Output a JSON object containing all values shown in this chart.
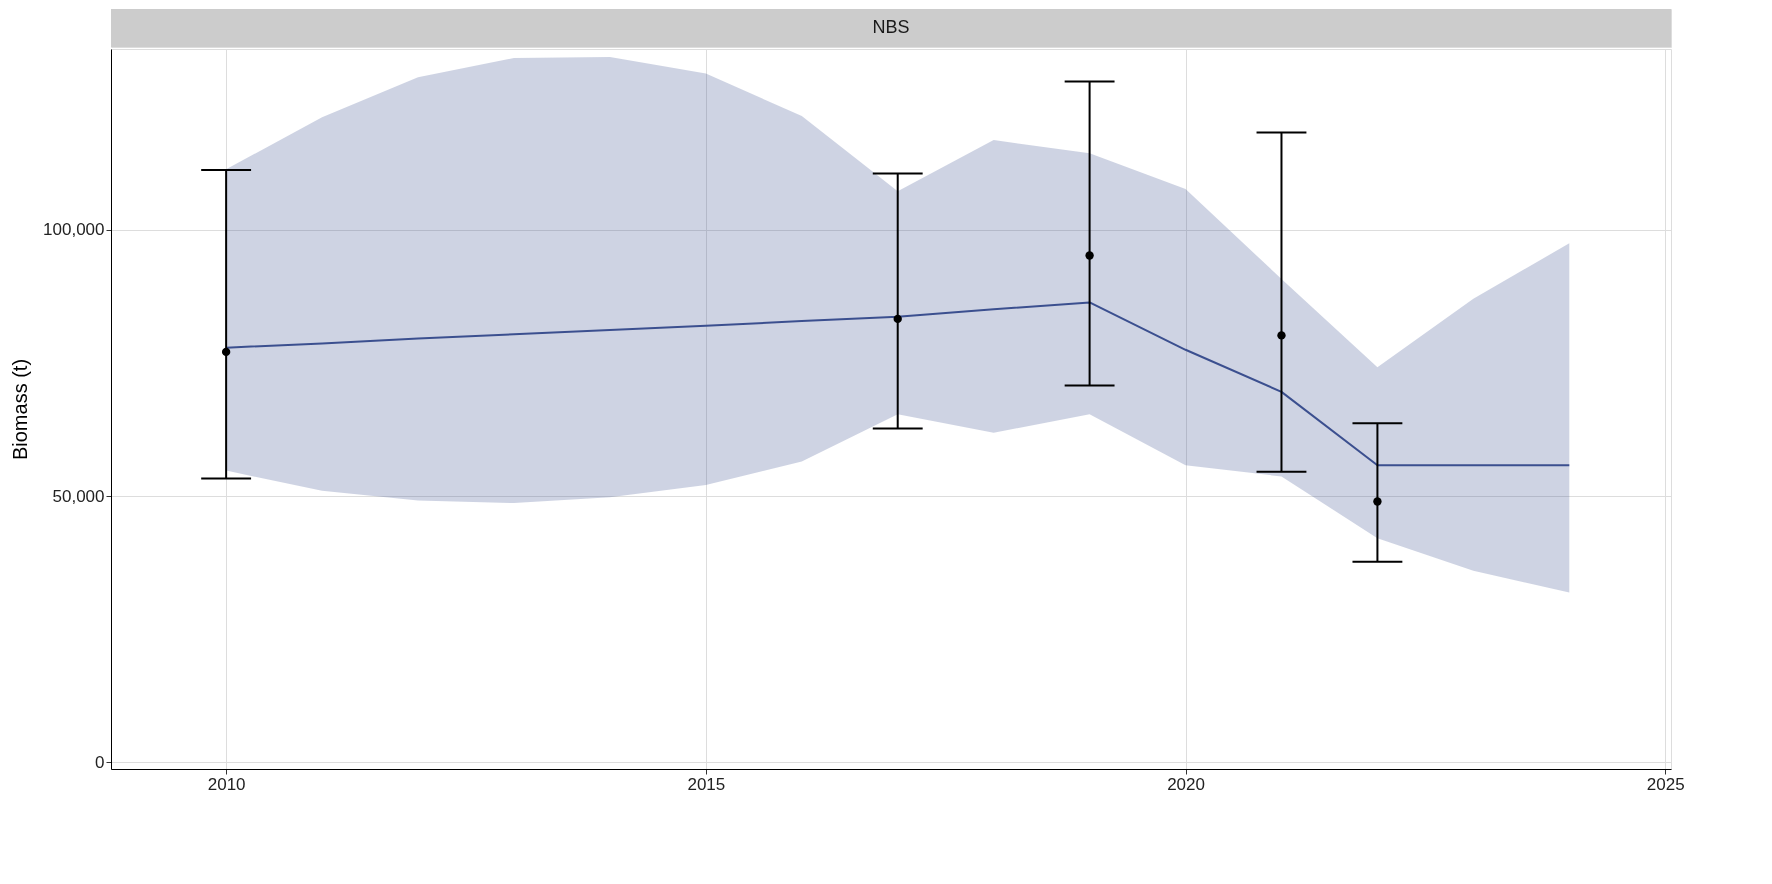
{
  "chart_data": {
    "type": "line",
    "title": "NBS",
    "ylabel": "Biomass (t)",
    "xlim": [
      2008.8,
      2025.06
    ],
    "xticks": [
      2010,
      2015,
      2020,
      2025
    ],
    "ylim": [
      -1250,
      134000
    ],
    "yticks": [
      0,
      {
        "value": 50000,
        "label": "50,000"
      },
      {
        "value": 100000,
        "label": "100,000"
      }
    ],
    "grid": true,
    "series": [
      {
        "color": "#3b4f8f",
        "x": [
          2010,
          2011,
          2012,
          2013,
          2014,
          2015,
          2016,
          2017,
          2018,
          2019,
          2020,
          2021,
          2022,
          2023,
          2024
        ],
        "values": [
          77900,
          78700,
          79600,
          80400,
          81200,
          82000,
          82900,
          83700,
          85100,
          86400,
          77500,
          69600,
          55800,
          55800,
          55800
        ],
        "lower": [
          54800,
          51000,
          49200,
          48700,
          49800,
          52100,
          56500,
          65400,
          61900,
          65400,
          55800,
          53700,
          42100,
          36000,
          31900
        ],
        "upper": [
          111400,
          121200,
          128700,
          132300,
          132500,
          129400,
          121400,
          107300,
          116900,
          114400,
          107700,
          90800,
          74200,
          87100,
          97500
        ]
      },
      {
        "type": "scatter",
        "color": "#000000",
        "marker": "circle",
        "x": [
          2010,
          2017,
          2019,
          2021,
          2022
        ],
        "values": [
          77100,
          83300,
          95200,
          80200,
          49000
        ],
        "errors": [
          [
            53300,
            111250
          ],
          [
            62700,
            110600
          ],
          [
            70800,
            127900
          ],
          [
            54600,
            118300
          ],
          [
            37700,
            63700
          ]
        ]
      }
    ]
  }
}
